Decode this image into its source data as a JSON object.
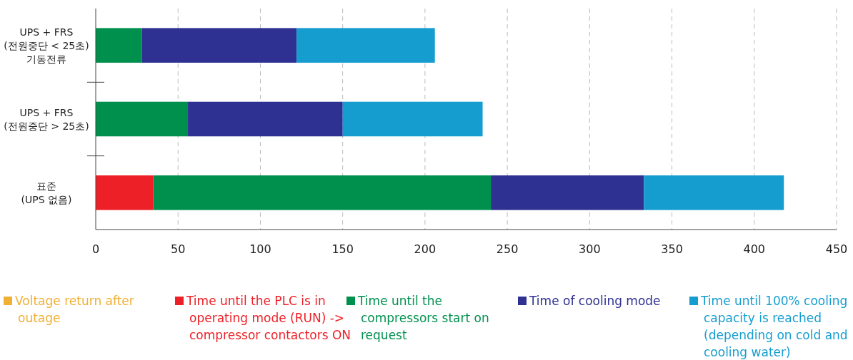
{
  "chart_data": {
    "type": "bar",
    "orientation": "horizontal",
    "stacked": true,
    "categories": [
      "UPS + FRS\n(전원중단 < 25초)\n기동전류",
      "UPS + FRS\n(전원중단 > 25초)",
      "표준\n(UPS 없음)"
    ],
    "series": [
      {
        "name": "Voltage return after outage",
        "color": "#f0b033",
        "values": [
          0,
          0,
          0
        ]
      },
      {
        "name": "Time until the PLC is in operating mode (RUN) -> compressor contactors ON",
        "color": "#ee2027",
        "values": [
          0,
          0,
          35
        ]
      },
      {
        "name": "Time until the compressors start on request",
        "color": "#00904e",
        "values": [
          28,
          56,
          205
        ]
      },
      {
        "name": "Time of cooling mode",
        "color": "#2e3192",
        "values": [
          94,
          94,
          93
        ]
      },
      {
        "name": "Time until 100% cooling capacity is reached (depending on cold and cooling water)",
        "color": "#159dd0",
        "values": [
          84,
          85,
          85
        ]
      }
    ],
    "xlim": [
      0,
      450
    ],
    "xticks": [
      0,
      50,
      100,
      150,
      200,
      250,
      300,
      350,
      400,
      450
    ],
    "grid": "x",
    "legend": "bottom"
  }
}
